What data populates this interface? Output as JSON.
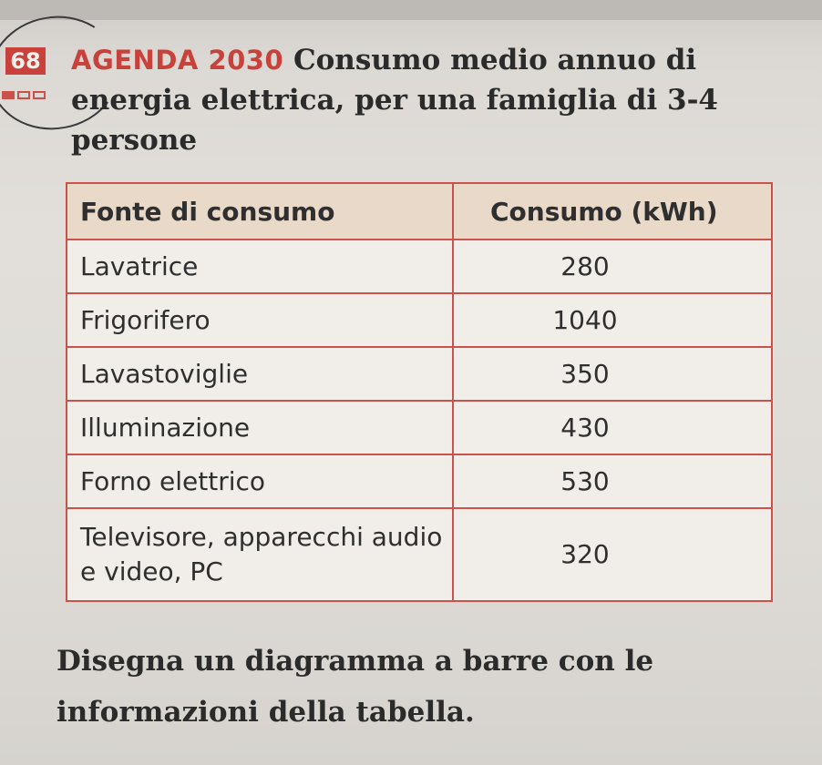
{
  "exercise": {
    "number": "68",
    "tag": "AGENDA 2030",
    "title": "Consumo medio annuo di energia elettrica, per una famiglia di 3-4 persone"
  },
  "table": {
    "headers": [
      "Fonte di consumo",
      "Consumo (kWh)"
    ],
    "rows": [
      {
        "source": "Lavatrice",
        "value": "280"
      },
      {
        "source": "Frigorifero",
        "value": "1040"
      },
      {
        "source": "Lavastoviglie",
        "value": "350"
      },
      {
        "source": "Illuminazione",
        "value": "430"
      },
      {
        "source": "Forno elettrico",
        "value": "530"
      },
      {
        "source": "Televisore, apparecchi audio e video, PC",
        "value": "320"
      }
    ]
  },
  "instruction": "Disegna un diagramma a barre con le informazioni della tabella.",
  "colors": {
    "accent": "#c8413a",
    "header_bg": "#e9d9c9",
    "cell_bg": "#f1ede8"
  }
}
